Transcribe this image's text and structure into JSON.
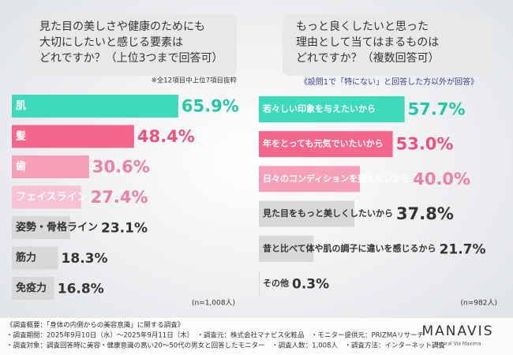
{
  "chart_data": [
    {
      "type": "barh",
      "title": [
        "見た目の美しさや健康のためにも",
        "大切にしたいと感じる要素は",
        "どれですか？（上位3つまで回答可）"
      ],
      "note": "※全12項目中上位7項目抜粋",
      "categories": [
        "肌",
        "髪",
        "歯",
        "フェイスライン",
        "姿勢・骨格ライン",
        "筋力",
        "免疫力"
      ],
      "values": [
        65.9,
        48.4,
        30.6,
        27.4,
        23.1,
        18.3,
        16.8
      ],
      "value_labels": [
        "65.9%",
        "48.4%",
        "30.6%",
        "27.4%",
        "23.1%",
        "18.3%",
        "16.8%"
      ],
      "colors": [
        "#3ddbbb",
        "#f4668c",
        "#f6a0ba",
        "#f8c2d3",
        "#d8d8d8",
        "#d8d8d8",
        "#d8d8d8"
      ],
      "value_label_colors": [
        "#1fc9a8",
        "#f0507c",
        "#f07fa0",
        "#f07fa0",
        "#333333",
        "#333333",
        "#333333"
      ],
      "xlim": [
        0,
        100
      ],
      "n_label": "(n=1,008人)"
    },
    {
      "type": "barh",
      "title": [
        "もっと良くしたいと思った",
        "理由として当てはまるものは",
        "どれですか？（複数回答可）"
      ],
      "note": "《設問1で「特にない」と回答した方以外が回答》",
      "categories": [
        "若々しい印象を与えたいから",
        "年をとっても元気でいたいから",
        "日々のコンディションを整えたいから",
        "見た目をもっと美しくしたいから",
        "昔と比べて体や肌の調子に違いを感じるから",
        "その他"
      ],
      "values": [
        57.7,
        53.0,
        40.0,
        37.8,
        21.7,
        0.3
      ],
      "value_labels": [
        "57.7%",
        "53.0%",
        "40.0%",
        "37.8%",
        "21.7%",
        "0.3%"
      ],
      "colors": [
        "#3ddbbb",
        "#f4668c",
        "#f6a0ba",
        "#d8d8d8",
        "#d8d8d8",
        "#d8d8d8"
      ],
      "value_label_colors": [
        "#1fc9a8",
        "#f0507c",
        "#f07fa0",
        "#333333",
        "#333333",
        "#333333"
      ],
      "xlim": [
        0,
        100
      ],
      "n_label": "(n=982人)"
    }
  ],
  "footer": {
    "lines": [
      "《調査概要：「身体の内側からの美容意識」に関する調査》",
      "・調査期間：2025年9月10日（水）〜2025年9月11日（木）　・調査元：株式会社マナビス化粧品　・モニター提供元：PRIZMAリサーチ",
      "・調査対象：調査回答時に美容・健康意識の高い20〜50代の男女と回答したモニター　・調査人数：1,008人　・調査方法：インターネット調査"
    ],
    "brand": "MANAVIS",
    "tagline": "Natural Via Maxima"
  }
}
